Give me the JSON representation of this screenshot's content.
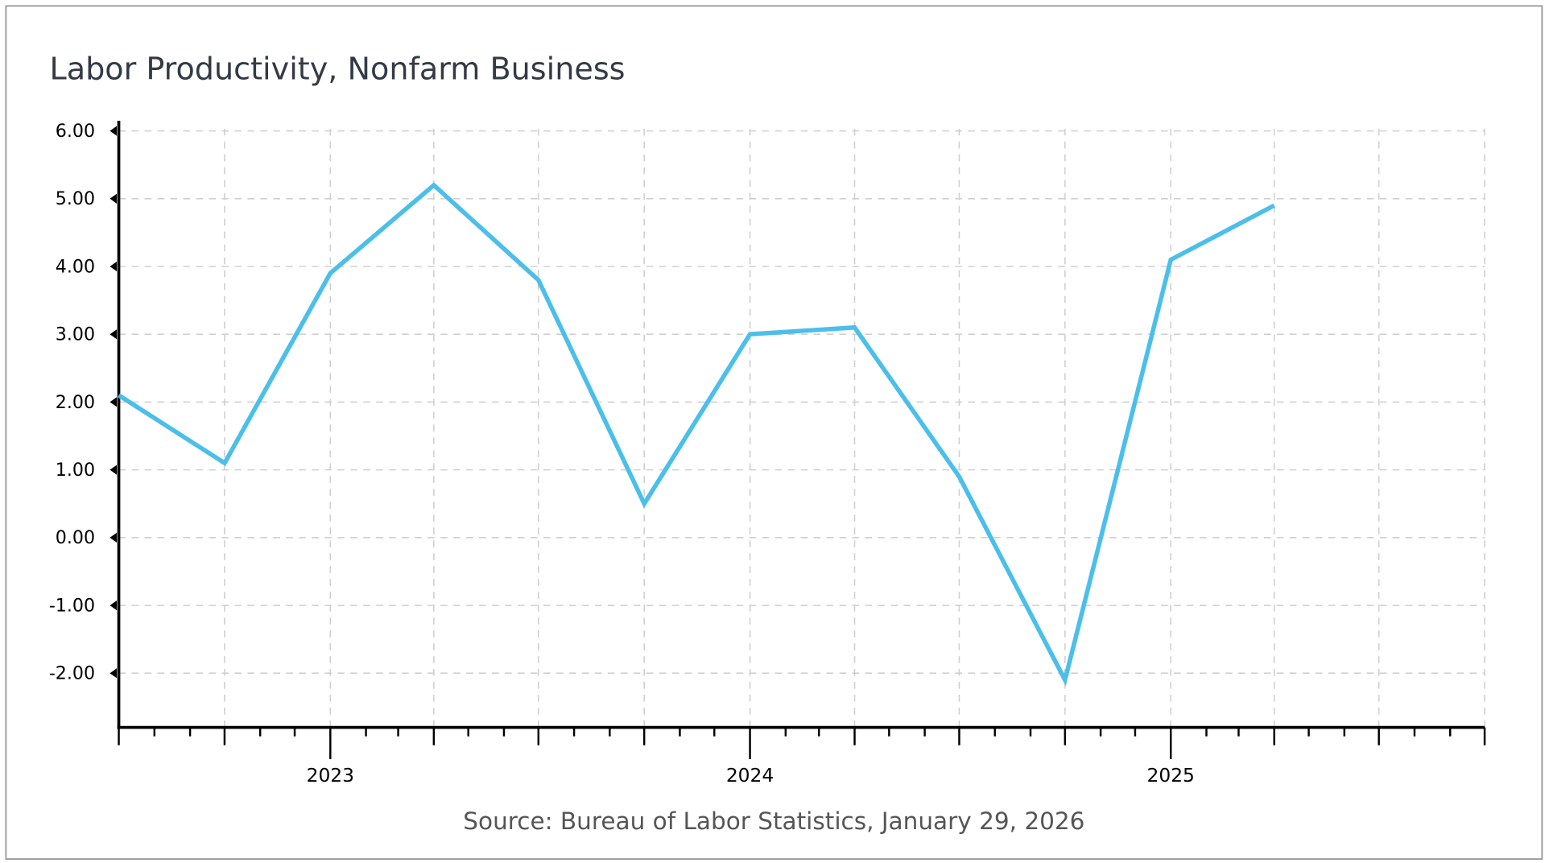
{
  "chart_data": {
    "type": "line",
    "title": "Labor Productivity, Nonfarm Business",
    "source": "Source: Bureau of Labor Statistics, January 29, 2026",
    "xlabel": "",
    "ylabel": "",
    "x": [
      "2022-07-01",
      "2022-10-01",
      "2023-01-01",
      "2023-04-01",
      "2023-07-01",
      "2023-10-01",
      "2024-01-01",
      "2024-04-01",
      "2024-07-01",
      "2024-10-01",
      "2025-01-01",
      "2025-04-01"
    ],
    "series": [
      {
        "values": [
          2.1,
          1.1,
          3.9,
          5.2,
          3.8,
          0.5,
          3.0,
          3.1,
          0.9,
          -2.1,
          4.1,
          4.9
        ],
        "color": "#4bbfea"
      }
    ],
    "xlim": [
      "2022-07-01",
      "2025-10-01"
    ],
    "ylim": [
      -2.8,
      6.15
    ],
    "yticks": [
      6,
      5,
      4,
      3,
      2,
      1,
      0,
      -1,
      -2
    ],
    "ytick_labels": [
      "6.00",
      "5.00",
      "4.00",
      "3.00",
      "2.00",
      "1.00",
      "0.00",
      "-1.00",
      "-2.00"
    ],
    "xticks": [
      "2023-01-01",
      "2024-01-01",
      "2025-01-01"
    ],
    "xtick_labels": [
      "2023",
      "2024",
      "2025"
    ],
    "grid": true,
    "legend": "none"
  }
}
